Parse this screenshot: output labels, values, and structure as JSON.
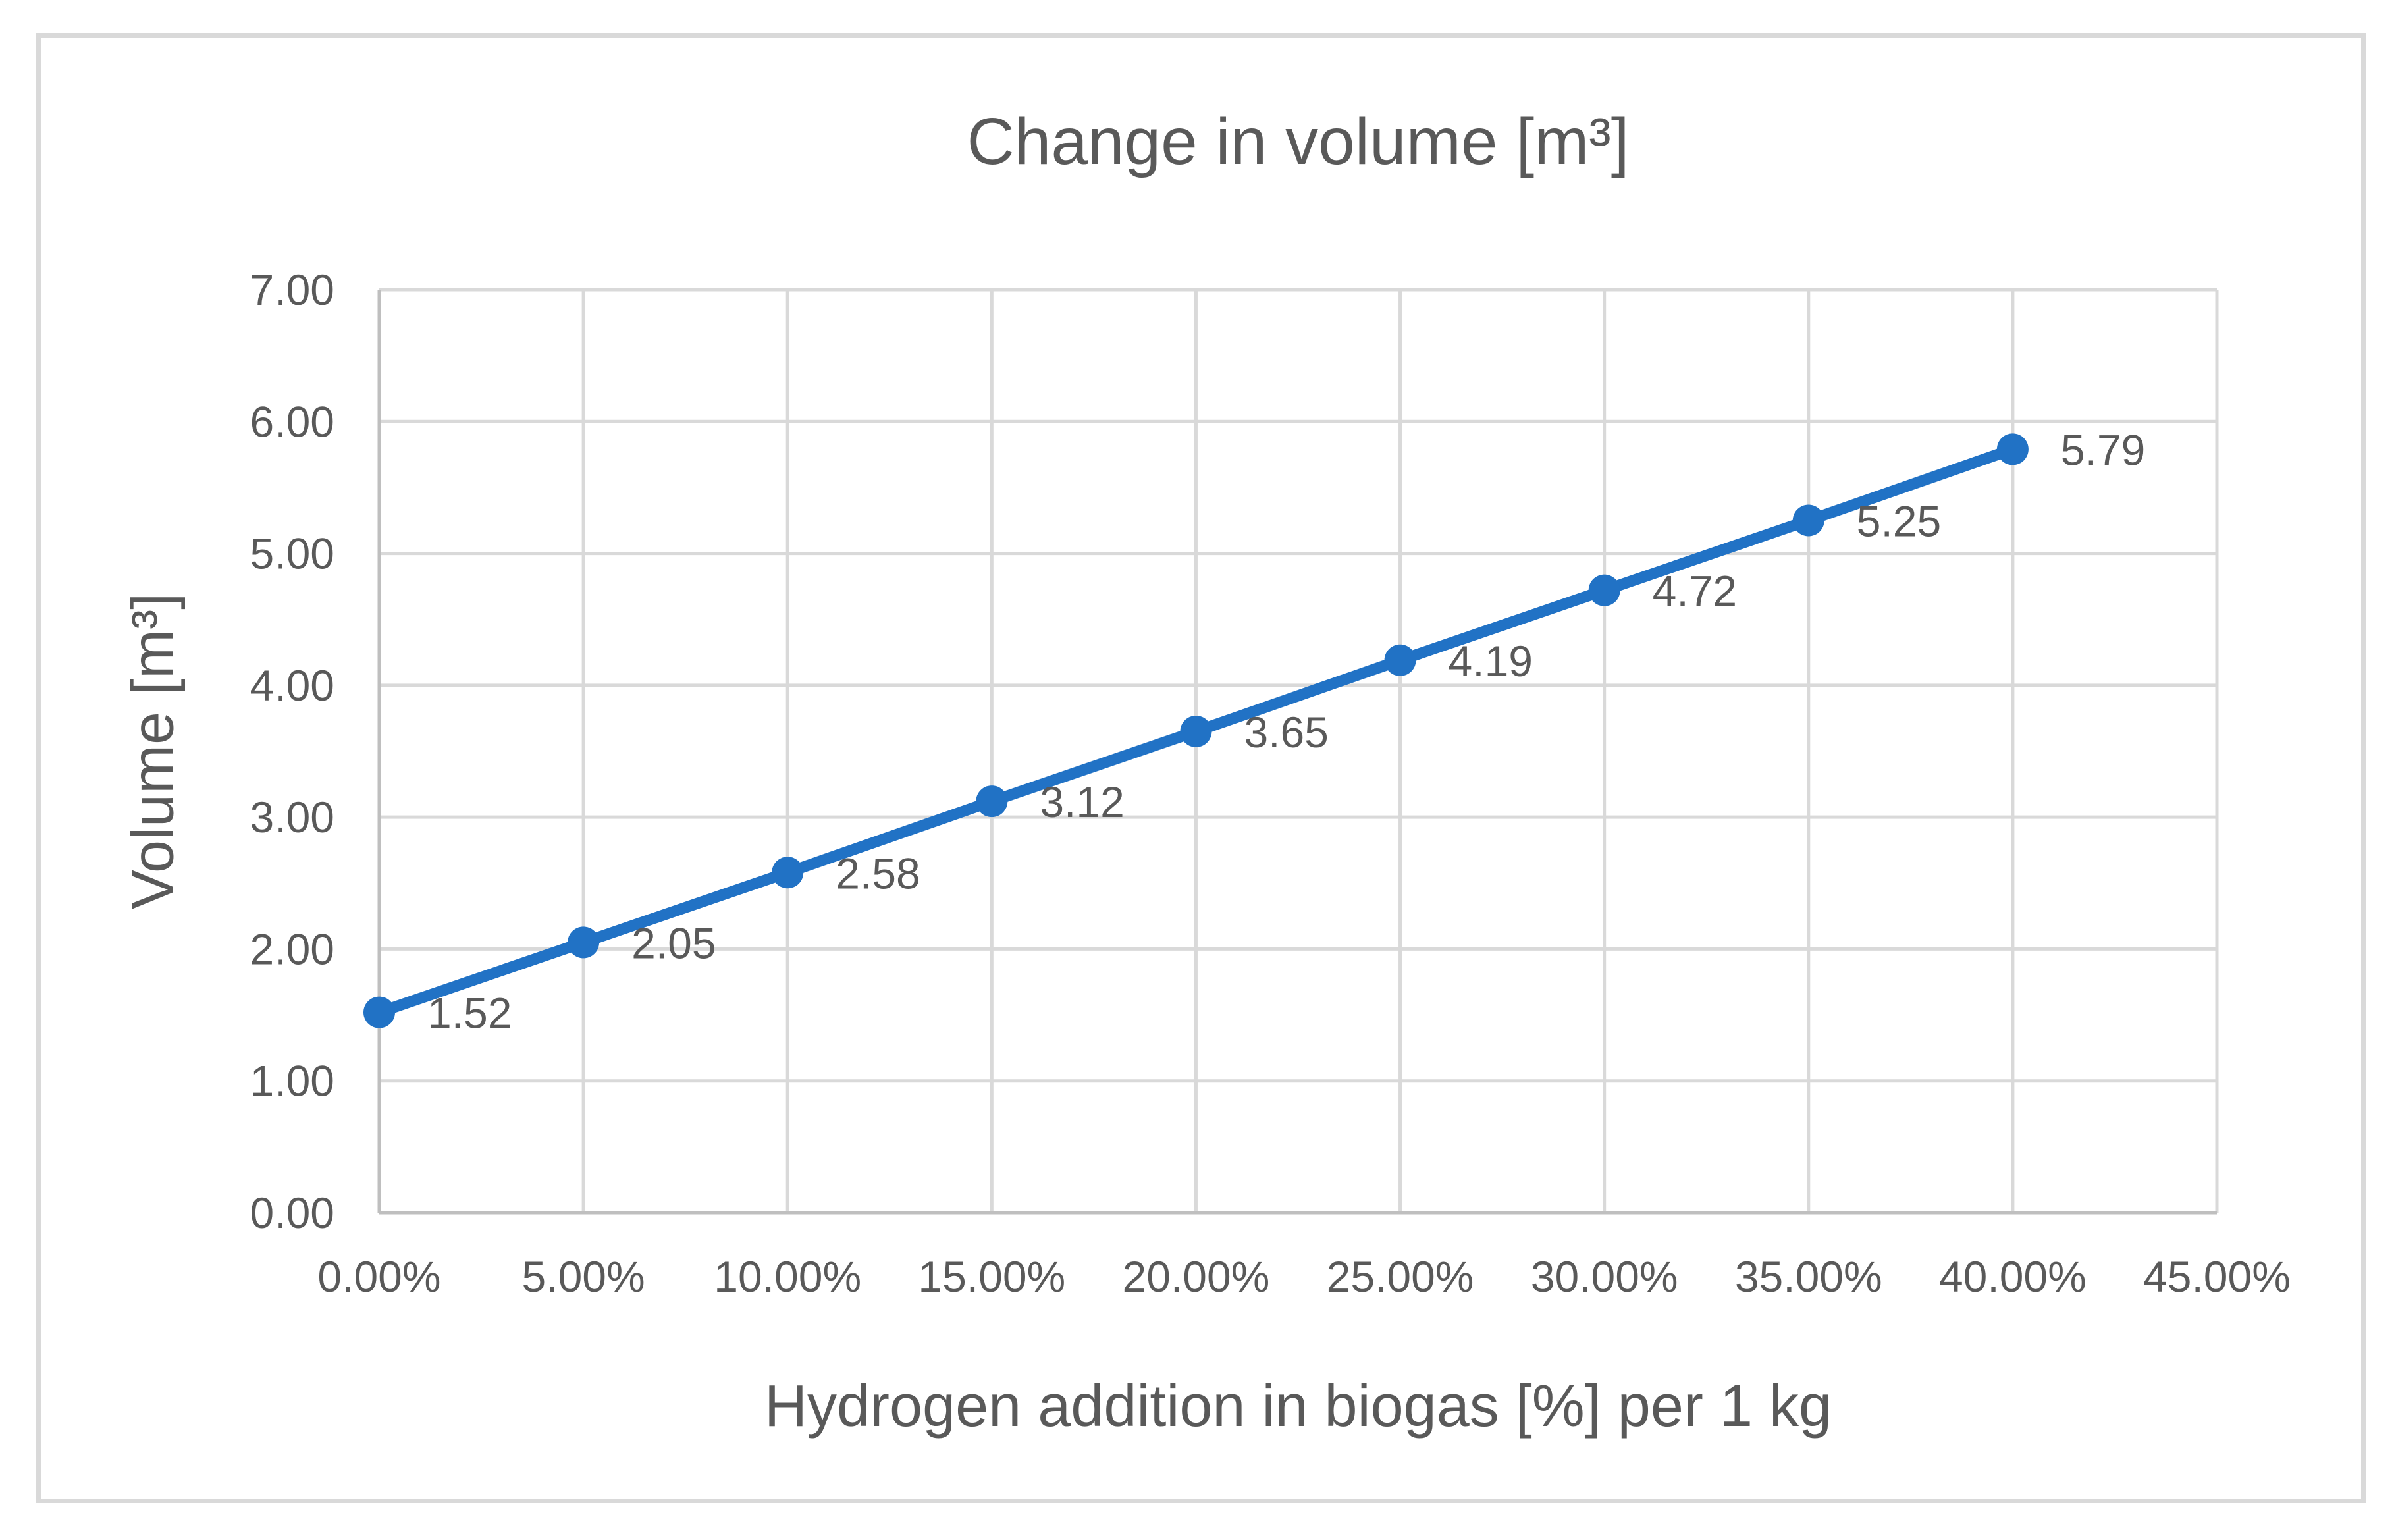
{
  "figure": {
    "background_color": "#FFFFFF",
    "border_color": "#D9D9D9"
  },
  "chart_data": {
    "type": "line",
    "title": "Change in volume [m³]",
    "xlabel": "Hydrogen addition in biogas [%] per 1 kg",
    "ylabel": "Volume [m³]",
    "xlim": [
      0,
      45
    ],
    "ylim": [
      0,
      7
    ],
    "x_step": 5,
    "y_step": 1,
    "x_tick_labels": [
      "0.00%",
      "5.00%",
      "10.00%",
      "15.00%",
      "20.00%",
      "25.00%",
      "30.00%",
      "35.00%",
      "40.00%",
      "45.00%"
    ],
    "y_tick_labels": [
      "0.00",
      "1.00",
      "2.00",
      "3.00",
      "4.00",
      "5.00",
      "6.00",
      "7.00"
    ],
    "grid": true,
    "legend_position": "none",
    "gridline_color": "#D9D9D9",
    "axis_line_color": "#BFBFBF",
    "text_color": "#595959",
    "series": [
      {
        "name": "Change in volume",
        "x": [
          0,
          5,
          10,
          15,
          20,
          25,
          30,
          35,
          40
        ],
        "values": [
          1.52,
          2.05,
          2.58,
          3.12,
          3.65,
          4.19,
          4.72,
          5.25,
          5.79
        ],
        "data_labels": [
          "1.52",
          "2.05",
          "2.58",
          "3.12",
          "3.65",
          "4.19",
          "4.72",
          "5.25",
          "5.79"
        ],
        "color": "#2172C5"
      }
    ]
  }
}
